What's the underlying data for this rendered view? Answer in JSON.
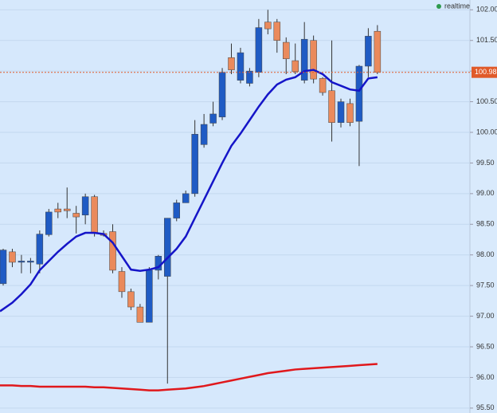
{
  "chart_data": {
    "type": "candlestick",
    "status": "realtime",
    "up_color": "#1f5bc4",
    "down_color": "#ea8a5c",
    "open": [
      97.53,
      98.05,
      97.88,
      97.88,
      97.85,
      98.33,
      98.75,
      98.75,
      98.68,
      98.65,
      98.95,
      98.35,
      98.38,
      97.73,
      97.4,
      97.15,
      96.9,
      97.75,
      97.65,
      98.6,
      98.85,
      99.0,
      99.8,
      100.15,
      100.25,
      101.22,
      100.85,
      100.8,
      100.98,
      101.8,
      101.8,
      101.47,
      101.17,
      100.85,
      101.5,
      100.88,
      100.68,
      100.16,
      100.47,
      100.18,
      101.08,
      101.65
    ],
    "high": [
      98.1,
      98.1,
      98.0,
      97.95,
      98.4,
      98.75,
      98.85,
      99.1,
      98.8,
      99.0,
      98.98,
      98.4,
      98.5,
      97.8,
      97.45,
      97.2,
      97.8,
      98.0,
      98.6,
      98.9,
      99.05,
      100.2,
      100.3,
      100.5,
      101.05,
      101.45,
      101.38,
      101.05,
      101.85,
      102.0,
      101.85,
      101.55,
      101.45,
      101.8,
      101.58,
      100.9,
      101.5,
      100.55,
      100.55,
      101.1,
      101.7,
      101.75
    ],
    "low": [
      97.5,
      97.8,
      97.7,
      97.7,
      97.7,
      98.3,
      98.6,
      98.6,
      98.35,
      98.5,
      98.3,
      98.3,
      97.7,
      97.3,
      97.1,
      96.9,
      96.9,
      97.6,
      95.9,
      98.55,
      98.85,
      98.95,
      99.75,
      100.1,
      100.2,
      100.95,
      100.8,
      100.75,
      100.9,
      101.6,
      101.3,
      100.95,
      100.95,
      100.8,
      100.8,
      100.6,
      99.85,
      100.08,
      100.1,
      99.45,
      100.9,
      100.95
    ],
    "close": [
      98.08,
      97.88,
      97.9,
      97.9,
      98.34,
      98.7,
      98.7,
      98.72,
      98.62,
      98.95,
      98.35,
      98.32,
      97.75,
      97.4,
      97.15,
      96.9,
      97.75,
      97.98,
      98.6,
      98.85,
      99.0,
      99.97,
      100.13,
      100.3,
      100.98,
      101.02,
      101.3,
      101.0,
      101.71,
      101.69,
      101.5,
      101.2,
      100.99,
      101.52,
      100.87,
      100.65,
      100.16,
      100.5,
      100.16,
      101.08,
      101.57,
      100.98
    ],
    "lines": [
      {
        "color": "#1515c8",
        "values": [
          97.08,
          97.22,
          97.36,
          97.52,
          97.75,
          97.9,
          98.05,
          98.18,
          98.3,
          98.36,
          98.36,
          98.34,
          98.2,
          97.98,
          97.76,
          97.74,
          97.76,
          97.8,
          97.95,
          98.1,
          98.3,
          98.6,
          98.9,
          99.2,
          99.5,
          99.78,
          99.98,
          100.2,
          100.42,
          100.62,
          100.78,
          100.86,
          100.9,
          101.0,
          101.02,
          100.95,
          100.82,
          100.76,
          100.7,
          100.68,
          100.88,
          100.9
        ]
      },
      {
        "color": "#e0181c",
        "values": [
          95.87,
          95.87,
          95.86,
          95.86,
          95.85,
          95.85,
          95.85,
          95.85,
          95.85,
          95.85,
          95.84,
          95.84,
          95.83,
          95.82,
          95.81,
          95.8,
          95.79,
          95.79,
          95.8,
          95.81,
          95.82,
          95.84,
          95.86,
          95.89,
          95.92,
          95.95,
          95.98,
          96.01,
          96.04,
          96.07,
          96.09,
          96.11,
          96.13,
          96.14,
          96.15,
          96.16,
          96.17,
          96.18,
          96.19,
          96.2,
          96.21,
          96.22
        ]
      }
    ],
    "current_price": 100.98,
    "current_price_color": "#e05a2a",
    "ylim": [
      95.42,
      102.16
    ],
    "yticks": [
      {
        "value": 95.5,
        "label": "95.50"
      },
      {
        "value": 96,
        "label": "96.00"
      },
      {
        "value": 96.5,
        "label": "96.50"
      },
      {
        "value": 97,
        "label": "97.00"
      },
      {
        "value": 97.5,
        "label": "97.50"
      },
      {
        "value": 98,
        "label": "98.00"
      },
      {
        "value": 98.5,
        "label": "98.50"
      },
      {
        "value": 99,
        "label": "99.00"
      },
      {
        "value": 99.5,
        "label": "99.50"
      },
      {
        "value": 100,
        "label": "100.00"
      },
      {
        "value": 100.5,
        "label": "100.50"
      },
      {
        "value": 101,
        "label": "101.00"
      },
      {
        "value": 101.5,
        "label": "101.50"
      },
      {
        "value": 102,
        "label": "102.00"
      }
    ],
    "grid": true
  }
}
